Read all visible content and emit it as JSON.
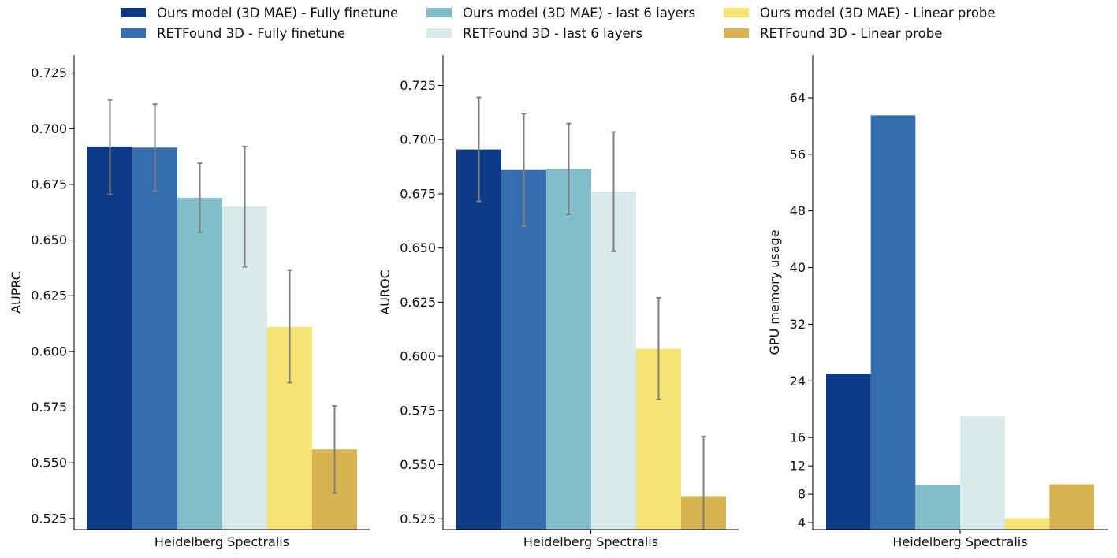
{
  "colors": {
    "ours_full": "#0d3b87",
    "retfound_full": "#356daf",
    "ours_last6": "#82bec9",
    "retfound_last6": "#d8eaea",
    "ours_linear": "#f7e474",
    "retfound_linear": "#d8b354",
    "error_bar": "#808080",
    "axis": "#000000"
  },
  "legend": [
    {
      "label": "Ours model (3D MAE) - Fully finetune",
      "color_key": "ours_full"
    },
    {
      "label": "RETFound 3D - Fully finetune",
      "color_key": "retfound_full"
    },
    {
      "label": "Ours model (3D MAE) - last 6 layers",
      "color_key": "ours_last6"
    },
    {
      "label": "RETFound 3D - last 6 layers",
      "color_key": "retfound_last6"
    },
    {
      "label": "Ours model (3D MAE) - Linear probe",
      "color_key": "ours_linear"
    },
    {
      "label": "RETFound 3D - Linear probe",
      "color_key": "retfound_linear"
    }
  ],
  "chart_data": [
    {
      "type": "bar",
      "categories": [
        "Heidelberg Spectralis"
      ],
      "xlabel": "Heidelberg Spectralis",
      "ylabel": "AUPRC",
      "ylim": [
        0.52,
        0.733
      ],
      "yticks": [
        0.525,
        0.55,
        0.575,
        0.6,
        0.625,
        0.65,
        0.675,
        0.7,
        0.725
      ],
      "ytick_labels": [
        "0.525",
        "0.550",
        "0.575",
        "0.600",
        "0.625",
        "0.650",
        "0.675",
        "0.700",
        "0.725"
      ],
      "series": [
        {
          "name": "Ours model (3D MAE) - Fully finetune",
          "values": [
            0.692
          ],
          "err_low": [
            0.6705
          ],
          "err_high": [
            0.713
          ]
        },
        {
          "name": "RETFound 3D - Fully finetune",
          "values": [
            0.6915
          ],
          "err_low": [
            0.672
          ],
          "err_high": [
            0.711
          ]
        },
        {
          "name": "Ours model (3D MAE) - last 6 layers",
          "values": [
            0.669
          ],
          "err_low": [
            0.6535
          ],
          "err_high": [
            0.6845
          ]
        },
        {
          "name": "RETFound 3D - last 6 layers",
          "values": [
            0.665
          ],
          "err_low": [
            0.638
          ],
          "err_high": [
            0.692
          ]
        },
        {
          "name": "Ours model (3D MAE) - Linear probe",
          "values": [
            0.611
          ],
          "err_low": [
            0.586
          ],
          "err_high": [
            0.6365
          ]
        },
        {
          "name": "RETFound 3D - Linear probe",
          "values": [
            0.556
          ],
          "err_low": [
            0.5365
          ],
          "err_high": [
            0.5755
          ]
        }
      ]
    },
    {
      "type": "bar",
      "categories": [
        "Heidelberg Spectralis"
      ],
      "xlabel": "Heidelberg Spectralis",
      "ylabel": "AUROC",
      "ylim": [
        0.52,
        0.739
      ],
      "yticks": [
        0.525,
        0.55,
        0.575,
        0.6,
        0.625,
        0.65,
        0.675,
        0.7,
        0.725
      ],
      "ytick_labels": [
        "0.525",
        "0.550",
        "0.575",
        "0.600",
        "0.625",
        "0.650",
        "0.675",
        "0.700",
        "0.725"
      ],
      "series": [
        {
          "name": "Ours model (3D MAE) - Fully finetune",
          "values": [
            0.6955
          ],
          "err_low": [
            0.6715
          ],
          "err_high": [
            0.7195
          ]
        },
        {
          "name": "RETFound 3D - Fully finetune",
          "values": [
            0.686
          ],
          "err_low": [
            0.66
          ],
          "err_high": [
            0.712
          ]
        },
        {
          "name": "Ours model (3D MAE) - last 6 layers",
          "values": [
            0.6865
          ],
          "err_low": [
            0.6655
          ],
          "err_high": [
            0.7075
          ]
        },
        {
          "name": "RETFound 3D - last 6 layers",
          "values": [
            0.676
          ],
          "err_low": [
            0.6485
          ],
          "err_high": [
            0.7035
          ]
        },
        {
          "name": "Ours model (3D MAE) - Linear probe",
          "values": [
            0.6035
          ],
          "err_low": [
            0.58
          ],
          "err_high": [
            0.627
          ]
        },
        {
          "name": "RETFound 3D - Linear probe",
          "values": [
            0.5355
          ],
          "err_low": [
            0.508
          ],
          "err_high": [
            0.563
          ]
        }
      ]
    },
    {
      "type": "bar",
      "categories": [
        "Heidelberg Spectralis"
      ],
      "xlabel": "Heidelberg Spectralis",
      "ylabel": "GPU memory usage",
      "ylim": [
        3,
        70
      ],
      "yticks": [
        4,
        8,
        12,
        16,
        24,
        32,
        40,
        48,
        56,
        64
      ],
      "ytick_labels": [
        "4",
        "8",
        "12",
        "16",
        "24",
        "32",
        "40",
        "48",
        "56",
        "64"
      ],
      "series": [
        {
          "name": "Ours model (3D MAE) - Fully finetune",
          "values": [
            25.0
          ]
        },
        {
          "name": "RETFound 3D - Fully finetune",
          "values": [
            61.5
          ]
        },
        {
          "name": "Ours model (3D MAE) - last 6 layers",
          "values": [
            9.3
          ]
        },
        {
          "name": "RETFound 3D - last 6 layers",
          "values": [
            19.0
          ]
        },
        {
          "name": "Ours model (3D MAE) - Linear probe",
          "values": [
            4.6
          ]
        },
        {
          "name": "RETFound 3D - Linear probe",
          "values": [
            9.4
          ]
        }
      ]
    }
  ]
}
